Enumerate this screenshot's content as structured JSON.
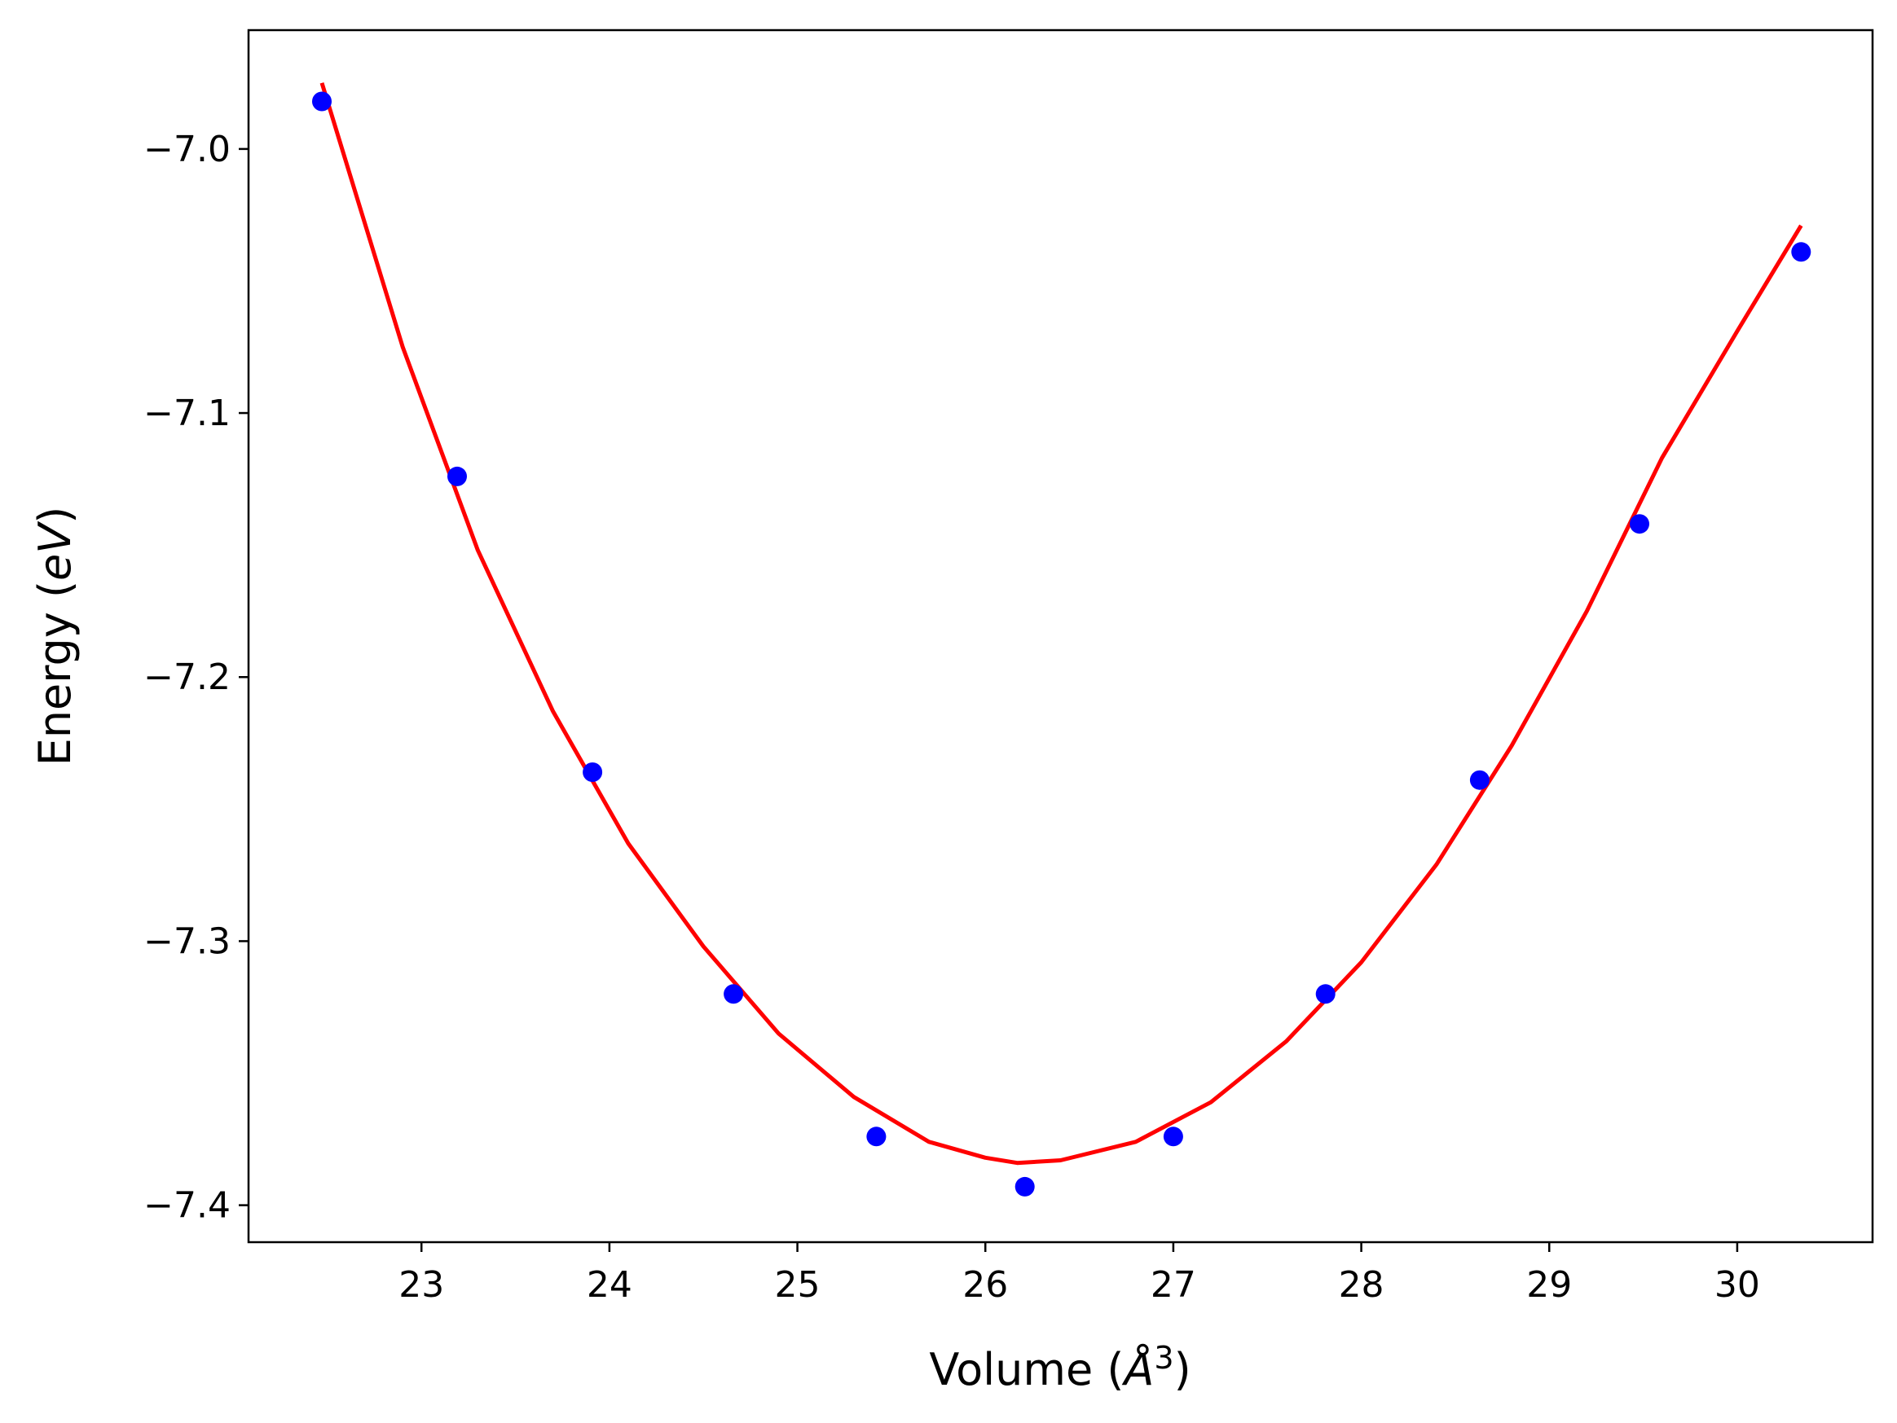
{
  "chart_data": {
    "type": "scatter",
    "title": "",
    "xlabel": "Volume",
    "xlabel_paren_open": "(",
    "xlabel_symbol": "Å",
    "xlabel_exponent": "3",
    "xlabel_paren_close": ")",
    "ylabel": "Energy",
    "ylabel_paren_open": "(",
    "ylabel_unit": "eV",
    "ylabel_paren_close": ")",
    "xlim": [
      22.08,
      30.72
    ],
    "ylim": [
      -7.414,
      -6.955
    ],
    "xticks": [
      23,
      24,
      25,
      26,
      27,
      28,
      29,
      30
    ],
    "xtick_labels": [
      "23",
      "24",
      "25",
      "26",
      "27",
      "28",
      "29",
      "30"
    ],
    "yticks": [
      -7.0,
      -7.1,
      -7.2,
      -7.3,
      -7.4
    ],
    "ytick_labels": [
      "−7.0",
      "−7.1",
      "−7.2",
      "−7.3",
      "−7.4"
    ],
    "grid": false,
    "series": [
      {
        "kind": "points",
        "color": "#0000ff",
        "x": [
          22.47,
          23.19,
          23.91,
          24.66,
          25.42,
          26.21,
          27.0,
          27.81,
          28.63,
          29.48,
          30.34
        ],
        "y": [
          -6.982,
          -7.124,
          -7.236,
          -7.32,
          -7.374,
          -7.393,
          -7.374,
          -7.32,
          -7.239,
          -7.142,
          -7.039
        ]
      },
      {
        "kind": "fit-line",
        "color": "#ff0000",
        "x": [
          22.47,
          22.9,
          23.3,
          23.7,
          24.1,
          24.5,
          24.9,
          25.3,
          25.7,
          26.0,
          26.17,
          26.4,
          26.8,
          27.2,
          27.6,
          28.0,
          28.4,
          28.8,
          29.2,
          29.6,
          30.0,
          30.34
        ],
        "y": [
          -6.975,
          -7.075,
          -7.152,
          -7.213,
          -7.263,
          -7.302,
          -7.335,
          -7.359,
          -7.376,
          -7.382,
          -7.384,
          -7.383,
          -7.376,
          -7.361,
          -7.338,
          -7.308,
          -7.271,
          -7.226,
          -7.175,
          -7.117,
          -7.069,
          -7.029
        ]
      }
    ]
  }
}
